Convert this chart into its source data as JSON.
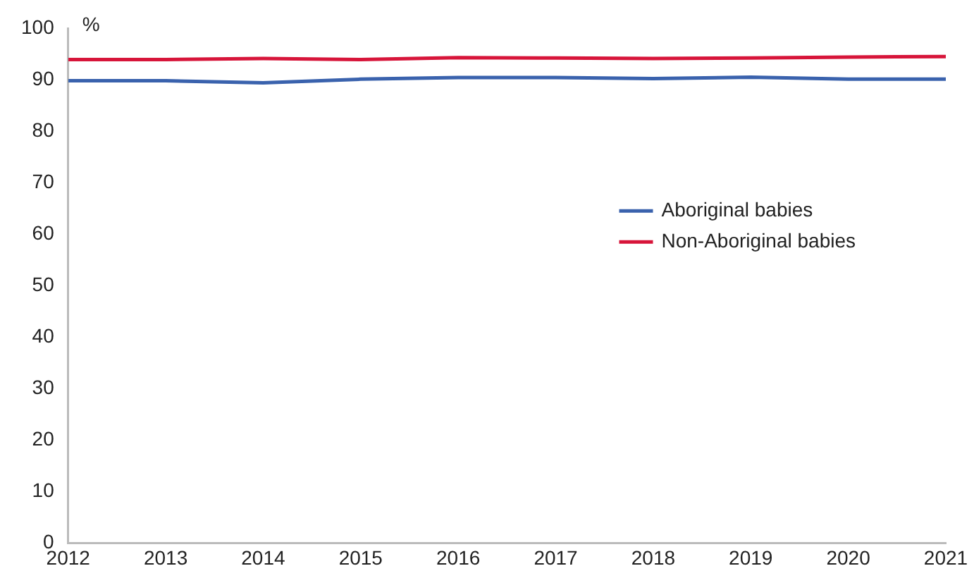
{
  "chart_data": {
    "type": "line",
    "ylabel": "%",
    "x": [
      2012,
      2013,
      2014,
      2015,
      2016,
      2017,
      2018,
      2019,
      2020,
      2021
    ],
    "xlim": [
      2012,
      2021
    ],
    "xticks": [
      2012,
      2013,
      2014,
      2015,
      2016,
      2017,
      2018,
      2019,
      2020,
      2021
    ],
    "ylim": [
      0,
      100
    ],
    "yticks": [
      0,
      10,
      20,
      30,
      40,
      50,
      60,
      70,
      80,
      90,
      100
    ],
    "grid": false,
    "legend": "right",
    "marker": "none",
    "line_style": "solid",
    "series": [
      {
        "name": "Aboriginal babies",
        "color": "#3a62ad",
        "values": [
          89.8,
          89.8,
          89.4,
          90.1,
          90.4,
          90.4,
          90.2,
          90.5,
          90.1,
          90.1
        ]
      },
      {
        "name": "Non-Aboriginal babies",
        "color": "#d7153a",
        "values": [
          93.9,
          93.9,
          94.1,
          93.9,
          94.3,
          94.2,
          94.1,
          94.2,
          94.4,
          94.5
        ]
      }
    ]
  }
}
